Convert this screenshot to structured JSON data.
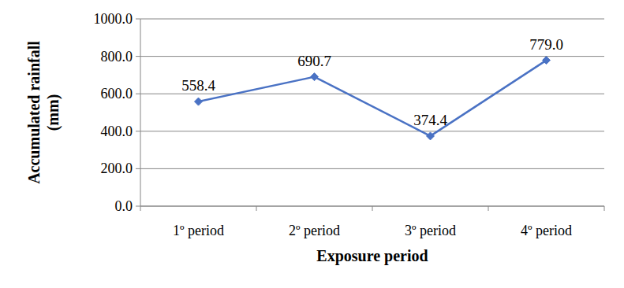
{
  "chart_data": {
    "type": "line",
    "categories": [
      "1º period",
      "2º period",
      "3º period",
      "4º period"
    ],
    "values": [
      558.4,
      690.7,
      374.4,
      779.0
    ],
    "value_labels": [
      "558.4",
      "690.7",
      "374.4",
      "779.0"
    ],
    "color": "#4a72c4",
    "marker": "diamond",
    "data_labels": true,
    "x_label": "Exposure period",
    "y_label": "Accumulated rainfall (mm)",
    "ylim": [
      0,
      1000
    ],
    "yticks": [
      {
        "value": 0,
        "label": "0.0"
      },
      {
        "value": 200,
        "label": "200.0"
      },
      {
        "value": 400,
        "label": "400.0"
      },
      {
        "value": 600,
        "label": "600.0"
      },
      {
        "value": 800,
        "label": "800.0"
      },
      {
        "value": 1000,
        "label": "1000.0"
      }
    ],
    "grid": true
  }
}
